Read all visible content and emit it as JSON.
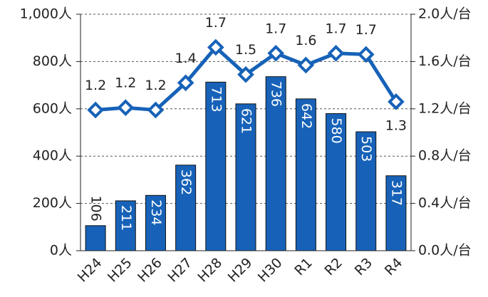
{
  "chart_data": {
    "type": "bar_line",
    "categories": [
      "H24",
      "H25",
      "H26",
      "H27",
      "H28",
      "H29",
      "H30",
      "R1",
      "R2",
      "R3",
      "R4"
    ],
    "series": [
      {
        "type": "bar",
        "color": "#1762b8",
        "values": [
          106,
          211,
          234,
          362,
          713,
          621,
          736,
          642,
          580,
          503,
          317
        ]
      },
      {
        "type": "line",
        "axis": "y2",
        "color": "#1762b8",
        "values": [
          1.19,
          1.21,
          1.19,
          1.42,
          1.72,
          1.49,
          1.67,
          1.57,
          1.67,
          1.66,
          1.26
        ],
        "value_labels": [
          "1.2",
          "1.2",
          "1.2",
          "1.4",
          "1.7",
          "1.5",
          "1.7",
          "1.6",
          "1.7",
          "1.7",
          "1.3"
        ]
      }
    ],
    "ylim": [
      0,
      1000
    ],
    "yticks": [
      {
        "value": 0,
        "label": "0人"
      },
      {
        "value": 200,
        "label": "200人"
      },
      {
        "value": 400,
        "label": "400人"
      },
      {
        "value": 600,
        "label": "600人"
      },
      {
        "value": 800,
        "label": "800人"
      },
      {
        "value": 1000,
        "label": "1,000人"
      }
    ],
    "y2lim": [
      0,
      2.0
    ],
    "y2ticks": [
      {
        "value": 0,
        "label": "0.0人/台"
      },
      {
        "value": 0.4,
        "label": "0.4人/台"
      },
      {
        "value": 0.8,
        "label": "0.8人/台"
      },
      {
        "value": 1.2,
        "label": "1.2人/台"
      },
      {
        "value": 1.6,
        "label": "1.6人/台"
      },
      {
        "value": 2.0,
        "label": "2.0人/台"
      }
    ],
    "grid": true
  }
}
